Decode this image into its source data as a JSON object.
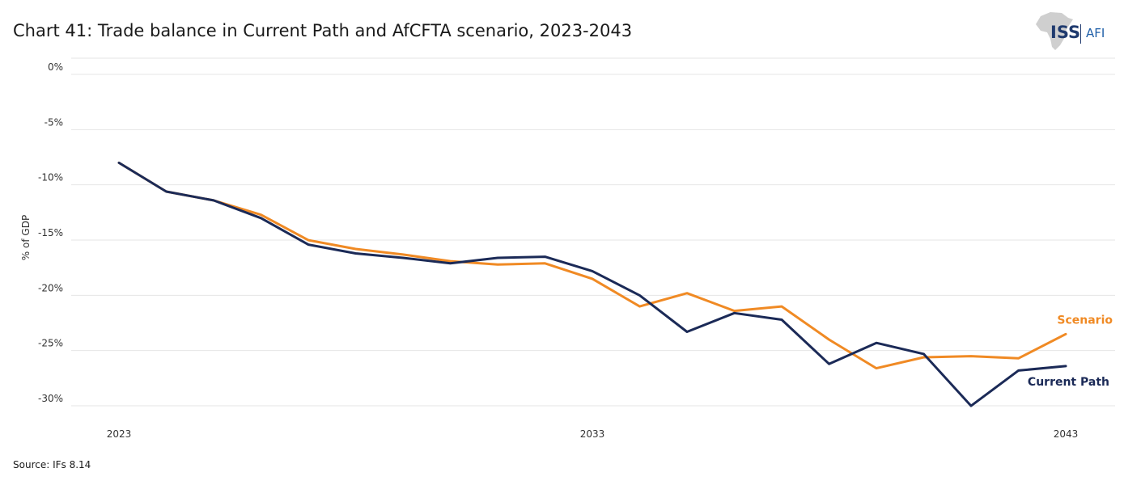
{
  "title": "Chart 41: Trade balance in Current Path and AfCFTA scenario, 2023-2043",
  "source": "Source: IFs 8.14",
  "logo": {
    "primary": "ISS",
    "secondary": "AFI"
  },
  "colors": {
    "current_path": "#1b2a57",
    "scenario": "#f08a24",
    "grid": "#e6e6e6"
  },
  "chart_data": {
    "type": "line",
    "title": "Chart 41: Trade balance in Current Path and AfCFTA scenario, 2023-2043",
    "xlabel": "",
    "ylabel": "% of GDP",
    "x": [
      2023,
      2024,
      2025,
      2026,
      2027,
      2028,
      2029,
      2030,
      2031,
      2032,
      2033,
      2034,
      2035,
      2036,
      2037,
      2038,
      2039,
      2040,
      2041,
      2042,
      2043
    ],
    "x_ticks": [
      "2023",
      "2033",
      "2043"
    ],
    "y_ticks": [
      "0%",
      "-5%",
      "-10%",
      "-15%",
      "-20%",
      "-25%",
      "-30%"
    ],
    "y_tick_values": [
      0,
      -5,
      -10,
      -15,
      -20,
      -25,
      -30
    ],
    "ylim": [
      -31,
      0.5
    ],
    "xlim": [
      2023,
      2043
    ],
    "series": [
      {
        "name": "Scenario",
        "key": "scenario",
        "values": [
          -8.3,
          -10.9,
          -11.7,
          -13.0,
          -15.3,
          -16.1,
          -16.6,
          -17.2,
          -17.5,
          -17.4,
          -18.8,
          -21.3,
          -20.1,
          -21.7,
          -21.3,
          -24.3,
          -26.9,
          -25.9,
          -25.8,
          -26.0,
          -23.8
        ]
      },
      {
        "name": "Current Path",
        "key": "current_path",
        "values": [
          -8.3,
          -10.9,
          -11.7,
          -13.3,
          -15.7,
          -16.5,
          -16.9,
          -17.4,
          -16.9,
          -16.8,
          -18.1,
          -20.3,
          -23.6,
          -21.9,
          -22.5,
          -26.5,
          -24.6,
          -25.6,
          -30.3,
          -27.1,
          -26.7
        ]
      }
    ],
    "grid": true,
    "legend": "inline-right"
  }
}
